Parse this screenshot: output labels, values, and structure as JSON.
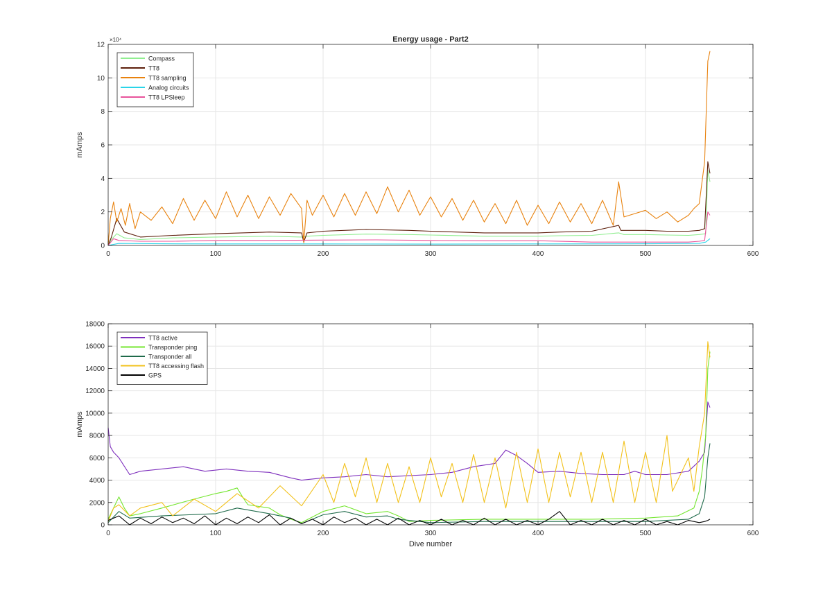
{
  "figure": {
    "title": "Energy usage - Part2"
  },
  "chart_data": [
    {
      "type": "line",
      "title": "Energy usage - Part2",
      "xlabel": "",
      "ylabel": "mAmps",
      "xlim": [
        0,
        600
      ],
      "ylim": [
        0,
        120000
      ],
      "xticks": [
        0,
        100,
        200,
        300,
        400,
        500,
        600
      ],
      "yticks": [
        0,
        20000,
        40000,
        60000,
        80000,
        100000,
        120000
      ],
      "ytick_labels": [
        "0",
        "2",
        "4",
        "6",
        "8",
        "10",
        "12"
      ],
      "exponent_label": "×10⁴",
      "grid": true,
      "legend_position": "top-left",
      "series": [
        {
          "name": "Compass",
          "color": "#90ee90",
          "x": [
            0,
            3,
            8,
            15,
            30,
            60,
            100,
            150,
            180,
            185,
            200,
            240,
            280,
            300,
            350,
            400,
            420,
            450,
            475,
            480,
            500,
            520,
            540,
            550,
            556,
            558,
            560
          ],
          "y": [
            0,
            3500,
            7000,
            4500,
            3500,
            4500,
            5000,
            5500,
            5000,
            5500,
            6000,
            6800,
            6500,
            6200,
            5500,
            5500,
            5800,
            6000,
            7500,
            6500,
            6500,
            6200,
            6000,
            6500,
            7000,
            45000,
            38000
          ]
        },
        {
          "name": "TT8",
          "color": "#5c1e0a",
          "x": [
            0,
            3,
            8,
            15,
            30,
            60,
            100,
            150,
            180,
            182,
            185,
            200,
            240,
            280,
            300,
            350,
            400,
            420,
            450,
            475,
            477,
            480,
            500,
            520,
            540,
            550,
            555,
            558,
            560
          ],
          "y": [
            0,
            5000,
            16000,
            8000,
            5000,
            6000,
            7000,
            8000,
            7500,
            2000,
            7500,
            8500,
            9500,
            9000,
            8500,
            7500,
            7500,
            8000,
            8500,
            12000,
            9000,
            9000,
            9000,
            8500,
            8500,
            9000,
            10000,
            50000,
            43000
          ]
        },
        {
          "name": "TT8 sampling",
          "color": "#e8820e",
          "x": [
            0,
            2,
            5,
            8,
            12,
            16,
            20,
            25,
            30,
            40,
            50,
            60,
            70,
            80,
            90,
            100,
            110,
            120,
            130,
            140,
            150,
            160,
            170,
            180,
            182,
            185,
            190,
            200,
            210,
            220,
            230,
            240,
            250,
            260,
            270,
            280,
            290,
            300,
            310,
            320,
            330,
            340,
            350,
            360,
            370,
            380,
            390,
            400,
            410,
            420,
            430,
            440,
            450,
            460,
            470,
            475,
            480,
            490,
            500,
            510,
            520,
            530,
            540,
            545,
            550,
            555,
            558,
            560
          ],
          "y": [
            0,
            16000,
            26000,
            14000,
            22000,
            12000,
            25000,
            10000,
            20000,
            15000,
            23000,
            13000,
            28000,
            15000,
            27000,
            16000,
            32000,
            17000,
            30000,
            16000,
            29000,
            18000,
            31000,
            22000,
            1500,
            27000,
            18000,
            30000,
            17000,
            31000,
            18000,
            32000,
            19000,
            35000,
            20000,
            33000,
            18000,
            29000,
            17000,
            28000,
            15000,
            27000,
            14000,
            25000,
            13000,
            27000,
            12000,
            24000,
            13000,
            26000,
            14000,
            25000,
            13000,
            27000,
            12000,
            38000,
            17000,
            19000,
            21000,
            16000,
            20000,
            14000,
            18000,
            22000,
            25000,
            50000,
            110000,
            116000
          ]
        },
        {
          "name": "Analog circuits",
          "color": "#2ad4e8",
          "x": [
            0,
            10,
            50,
            100,
            200,
            300,
            400,
            500,
            550,
            556,
            560
          ],
          "y": [
            0,
            1200,
            1000,
            900,
            900,
            800,
            900,
            1000,
            1200,
            2000,
            4000
          ]
        },
        {
          "name": "TT8 LPSleep",
          "color": "#e8529b",
          "x": [
            0,
            5,
            10,
            30,
            60,
            100,
            150,
            200,
            250,
            300,
            350,
            400,
            450,
            500,
            540,
            550,
            555,
            558,
            560
          ],
          "y": [
            0,
            4000,
            3000,
            2500,
            2500,
            3000,
            3000,
            3200,
            3300,
            3000,
            2800,
            2800,
            2000,
            2000,
            2000,
            2500,
            3000,
            20000,
            18000
          ]
        }
      ]
    },
    {
      "type": "line",
      "title": "",
      "xlabel": "Dive number",
      "ylabel": "mAmps",
      "xlim": [
        0,
        600
      ],
      "ylim": [
        0,
        18000
      ],
      "xticks": [
        0,
        100,
        200,
        300,
        400,
        500,
        600
      ],
      "yticks": [
        0,
        2000,
        4000,
        6000,
        8000,
        10000,
        12000,
        14000,
        16000,
        18000
      ],
      "grid": true,
      "legend_position": "top-left",
      "series": [
        {
          "name": "TT8 active",
          "color": "#7e2fbd",
          "x": [
            0,
            2,
            5,
            10,
            20,
            30,
            50,
            70,
            90,
            110,
            130,
            150,
            170,
            180,
            200,
            220,
            240,
            260,
            280,
            300,
            320,
            340,
            360,
            370,
            380,
            390,
            400,
            420,
            440,
            460,
            480,
            490,
            500,
            520,
            540,
            550,
            555,
            558,
            560
          ],
          "y": [
            8700,
            7000,
            6500,
            6000,
            4500,
            4800,
            5000,
            5200,
            4800,
            5000,
            4800,
            4700,
            4200,
            4000,
            4200,
            4300,
            4500,
            4300,
            4400,
            4500,
            4700,
            5200,
            5500,
            6700,
            6200,
            5500,
            4700,
            4800,
            4600,
            4500,
            4500,
            4800,
            4500,
            4500,
            4800,
            5700,
            6500,
            11000,
            10500
          ]
        },
        {
          "name": "Transponder ping",
          "color": "#73e62e",
          "x": [
            0,
            5,
            10,
            15,
            20,
            30,
            50,
            80,
            100,
            110,
            120,
            125,
            130,
            150,
            160,
            170,
            180,
            200,
            220,
            240,
            260,
            270,
            280,
            300,
            350,
            400,
            450,
            500,
            530,
            545,
            550,
            553,
            556,
            558,
            560
          ],
          "y": [
            500,
            1500,
            2500,
            1500,
            800,
            1000,
            1500,
            2300,
            2800,
            3000,
            3300,
            2500,
            1800,
            1500,
            900,
            500,
            200,
            1200,
            1700,
            1000,
            1200,
            800,
            300,
            400,
            500,
            500,
            500,
            600,
            800,
            1500,
            3000,
            5000,
            8000,
            14000,
            15500
          ]
        },
        {
          "name": "Transponder all",
          "color": "#1e6a4a",
          "x": [
            0,
            10,
            20,
            50,
            100,
            120,
            150,
            170,
            180,
            200,
            220,
            240,
            260,
            270,
            300,
            350,
            400,
            450,
            500,
            540,
            550,
            555,
            558,
            560
          ],
          "y": [
            200,
            1200,
            600,
            800,
            1000,
            1500,
            1000,
            600,
            100,
            900,
            1200,
            700,
            800,
            500,
            200,
            300,
            300,
            300,
            300,
            500,
            1000,
            2500,
            6000,
            7300
          ]
        },
        {
          "name": "TT8 accessing flash",
          "color": "#f2c11a",
          "x": [
            0,
            5,
            10,
            20,
            30,
            50,
            60,
            80,
            100,
            120,
            140,
            160,
            180,
            200,
            210,
            220,
            230,
            240,
            250,
            260,
            270,
            280,
            290,
            300,
            310,
            320,
            330,
            340,
            350,
            360,
            370,
            380,
            390,
            400,
            410,
            420,
            430,
            440,
            450,
            460,
            470,
            480,
            490,
            500,
            510,
            520,
            525,
            530,
            540,
            545,
            550,
            555,
            558,
            560
          ],
          "y": [
            300,
            1500,
            1800,
            800,
            1500,
            2000,
            800,
            2300,
            1200,
            2800,
            1500,
            3500,
            1700,
            4500,
            2000,
            5500,
            2500,
            6000,
            2000,
            5500,
            2000,
            5200,
            2000,
            6000,
            2500,
            5500,
            2000,
            6300,
            2000,
            6000,
            1500,
            6500,
            2000,
            6800,
            2000,
            6500,
            2500,
            6500,
            2000,
            6500,
            2000,
            7500,
            2000,
            6500,
            2000,
            8000,
            3000,
            4000,
            6000,
            3000,
            7000,
            10000,
            16400,
            15000
          ]
        },
        {
          "name": "GPS",
          "color": "#000000",
          "x": [
            0,
            10,
            20,
            30,
            40,
            50,
            60,
            70,
            80,
            90,
            100,
            110,
            120,
            130,
            140,
            150,
            160,
            170,
            180,
            190,
            200,
            210,
            220,
            230,
            240,
            250,
            260,
            270,
            280,
            290,
            300,
            310,
            320,
            330,
            340,
            350,
            360,
            370,
            380,
            390,
            400,
            410,
            420,
            430,
            440,
            450,
            460,
            470,
            480,
            490,
            500,
            510,
            520,
            530,
            540,
            550,
            555,
            558,
            560
          ],
          "y": [
            400,
            800,
            0,
            600,
            100,
            700,
            200,
            600,
            100,
            800,
            0,
            600,
            100,
            700,
            200,
            900,
            0,
            600,
            100,
            500,
            0,
            700,
            200,
            600,
            0,
            500,
            0,
            600,
            0,
            400,
            0,
            500,
            0,
            400,
            0,
            600,
            0,
            500,
            0,
            400,
            0,
            500,
            1200,
            0,
            400,
            0,
            500,
            0,
            400,
            0,
            500,
            0,
            300,
            0,
            400,
            200,
            300,
            400,
            500
          ]
        }
      ]
    }
  ]
}
